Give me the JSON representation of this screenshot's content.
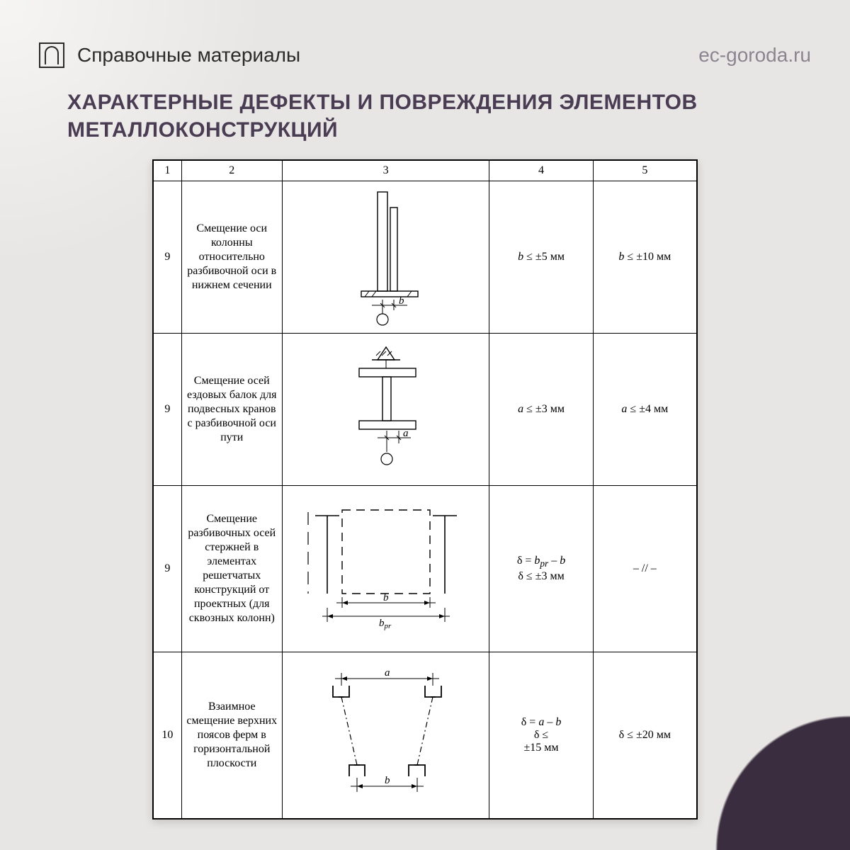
{
  "header": {
    "ref_label": "Справочные материалы",
    "site": "ec-goroda.ru"
  },
  "main_title": "ХАРАКТЕРНЫЕ ДЕФЕКТЫ И ПОВРЕЖДЕНИЯ ЭЛЕМЕНТОВ МЕТАЛЛОКОНСТРУКЦИЙ",
  "table": {
    "header_cols": [
      "1",
      "2",
      "3",
      "4",
      "5"
    ],
    "rows": [
      {
        "num": "9",
        "desc": "Смещение оси колонны относительно разбивочной оси в нижнем сечении",
        "dim_label": "b",
        "col4_html": "<span class='ital'>b</span> ≤ ±5 мм",
        "col5_html": "<span class='ital'>b</span> ≤ ±10 мм"
      },
      {
        "num": "9",
        "desc": "Смещение осей ездовых балок для подвесных кранов с разбивочной оси пути",
        "dim_label": "a",
        "col4_html": "<span class='ital'>a</span> ≤ ±3 мм",
        "col5_html": "<span class='ital'>a</span> ≤ ±4 мм"
      },
      {
        "num": "9",
        "desc": "Смещение разбивочных осей стержней в элементах решетчатых конструкций от проектных (для сквозных колонн)",
        "dim_label_a": "b",
        "dim_label_b": "bₚᵣ",
        "col4_html": "δ = <span class='ital'>b<sub>pr</sub></span> – <span class='ital'>b</span><br>δ ≤ ±3 мм",
        "col5_html": "– // –"
      },
      {
        "num": "10",
        "desc": "Взаимное смещение верхних поясов ферм в горизонтальной плоскости",
        "dim_label_a": "a",
        "dim_label_b": "b",
        "col4_html": "δ = <span class='ital'>a</span> – <span class='ital'>b</span><br>δ ≤<br>±15 мм",
        "col5_html": "δ ≤ ±20 мм"
      }
    ]
  },
  "styling": {
    "page_bg": "#e8e6e4",
    "corner_color": "#3a2d3f",
    "title_color": "#4a3c52",
    "text_color": "#2a2a2a",
    "site_color": "#8a8590",
    "table_bg": "#ffffff",
    "border_color": "#000000",
    "diagram_stroke": "#000000",
    "diagram_stroke_width": 1.4,
    "body_font": "Arial, sans-serif",
    "table_font": "'Times New Roman', serif",
    "header_fontsize": 28,
    "title_fontsize": 30,
    "cell_fontsize": 16
  }
}
